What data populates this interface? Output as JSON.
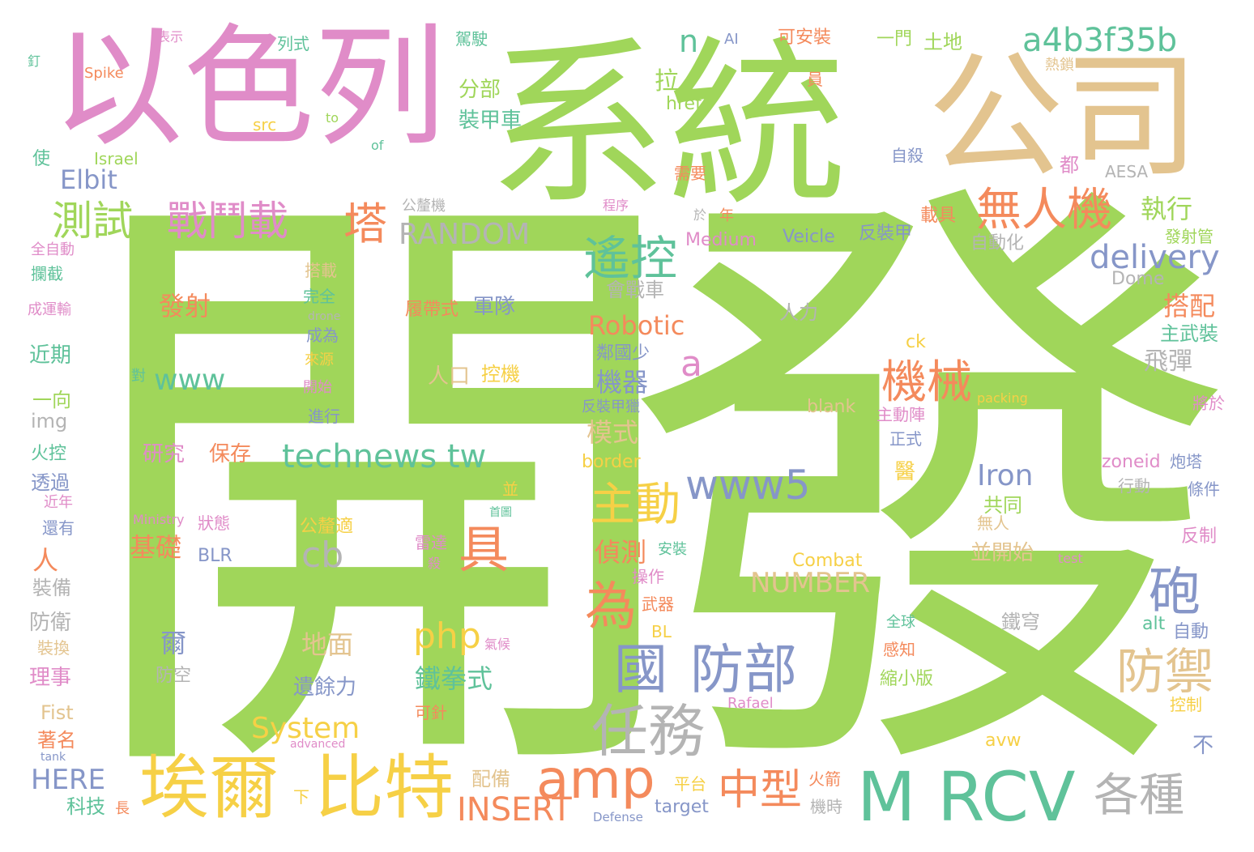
{
  "colors": {
    "green": "#a0d65a",
    "pink": "#e08cc8",
    "tan": "#e3c48f",
    "teal": "#5fc29a",
    "orange": "#f48a5c",
    "yellow": "#f6d046",
    "blue": "#8696c8",
    "gray": "#b4b4b4",
    "lime": "#b5dc6c"
  },
  "words": [
    {
      "text": "開",
      "color": "green"
    },
    {
      "text": "發",
      "color": "green"
    },
    {
      "text": "系統",
      "color": "green"
    },
    {
      "text": "以色列",
      "color": "pink"
    },
    {
      "text": "公司",
      "color": "tan"
    },
    {
      "text": "M RCV",
      "color": "teal"
    },
    {
      "text": "埃爾",
      "color": "yellow"
    },
    {
      "text": "比特",
      "color": "yellow"
    },
    {
      "text": "任務",
      "color": "gray"
    },
    {
      "text": "amp",
      "color": "orange"
    },
    {
      "text": "無人機",
      "color": "orange"
    },
    {
      "text": "a4b3f35b",
      "color": "teal"
    },
    {
      "text": "測試",
      "color": "green"
    },
    {
      "text": "戰鬥載",
      "color": "pink"
    },
    {
      "text": "塔",
      "color": "orange"
    },
    {
      "text": "遙控",
      "color": "teal"
    },
    {
      "text": "國",
      "color": "blue"
    },
    {
      "text": "防部",
      "color": "blue"
    },
    {
      "text": "機械",
      "color": "orange"
    },
    {
      "text": "砲",
      "color": "blue"
    },
    {
      "text": "防禦",
      "color": "tan"
    },
    {
      "text": "為",
      "color": "orange"
    },
    {
      "text": "具",
      "color": "orange"
    },
    {
      "text": "主動",
      "color": "yellow"
    },
    {
      "text": "中型",
      "color": "orange"
    },
    {
      "text": "各種",
      "color": "gray"
    },
    {
      "text": "www5",
      "color": "blue"
    },
    {
      "text": "technews tw",
      "color": "teal"
    },
    {
      "text": "delivery",
      "color": "blue"
    },
    {
      "text": "RANDOM",
      "color": "gray"
    },
    {
      "text": "INSERT",
      "color": "orange"
    },
    {
      "text": "a",
      "color": "pink"
    },
    {
      "text": "www",
      "color": "teal"
    },
    {
      "text": "cb",
      "color": "gray"
    },
    {
      "text": "php",
      "color": "yellow"
    },
    {
      "text": "System",
      "color": "yellow"
    },
    {
      "text": "NUMBER",
      "color": "tan"
    },
    {
      "text": "Robotic",
      "color": "orange"
    },
    {
      "text": "Iron",
      "color": "blue"
    },
    {
      "text": "n",
      "color": "teal"
    },
    {
      "text": "Elbit",
      "color": "blue"
    },
    {
      "text": "執行",
      "color": "green"
    },
    {
      "text": "搭配",
      "color": "orange"
    },
    {
      "text": "拉",
      "color": "green"
    },
    {
      "text": "分部",
      "color": "green"
    },
    {
      "text": "裝甲車",
      "color": "teal"
    },
    {
      "text": "發射",
      "color": "orange"
    },
    {
      "text": "機器",
      "color": "blue"
    },
    {
      "text": "模式",
      "color": "tan"
    },
    {
      "text": "偵測",
      "color": "orange"
    },
    {
      "text": "基礎",
      "color": "orange"
    },
    {
      "text": "地面",
      "color": "tan"
    },
    {
      "text": "鐵拳式",
      "color": "teal"
    },
    {
      "text": "遺餘力",
      "color": "blue"
    },
    {
      "text": "飛彈",
      "color": "gray"
    },
    {
      "text": "主武裝",
      "color": "teal"
    },
    {
      "text": "人",
      "color": "orange"
    },
    {
      "text": "爾",
      "color": "blue"
    },
    {
      "text": "研究",
      "color": "pink"
    },
    {
      "text": "保存",
      "color": "orange"
    },
    {
      "text": "履帶式",
      "color": "orange"
    },
    {
      "text": "軍隊",
      "color": "blue"
    },
    {
      "text": "人口",
      "color": "tan"
    },
    {
      "text": "控機",
      "color": "yellow"
    },
    {
      "text": "鄰國少",
      "color": "blue"
    },
    {
      "text": "共同",
      "color": "green"
    },
    {
      "text": "並開始",
      "color": "tan"
    },
    {
      "text": "Combat",
      "color": "yellow"
    },
    {
      "text": "Medium",
      "color": "pink"
    },
    {
      "text": "Veicle",
      "color": "blue"
    },
    {
      "text": "反裝甲",
      "color": "blue"
    },
    {
      "text": "載具",
      "color": "orange"
    },
    {
      "text": "自動化",
      "color": "gray"
    },
    {
      "text": "公釐機",
      "color": "gray"
    },
    {
      "text": "會戰車",
      "color": "gray"
    },
    {
      "text": "人力",
      "color": "gray"
    },
    {
      "text": "border",
      "color": "yellow"
    },
    {
      "text": "blank",
      "color": "tan"
    },
    {
      "text": "zoneid",
      "color": "pink"
    },
    {
      "text": "炮塔",
      "color": "blue"
    },
    {
      "text": "alt",
      "color": "teal"
    },
    {
      "text": "自動",
      "color": "blue"
    },
    {
      "text": "鐵穹",
      "color": "gray"
    },
    {
      "text": "HERE",
      "color": "blue"
    },
    {
      "text": "科技",
      "color": "teal"
    },
    {
      "text": "Fist",
      "color": "tan"
    },
    {
      "text": "著名",
      "color": "orange"
    },
    {
      "text": "理事",
      "color": "pink"
    },
    {
      "text": "防衛",
      "color": "gray"
    },
    {
      "text": "裝備",
      "color": "gray"
    },
    {
      "text": "近期",
      "color": "teal"
    },
    {
      "text": "一向",
      "color": "green"
    },
    {
      "text": "img",
      "color": "gray"
    },
    {
      "text": "火控",
      "color": "teal"
    },
    {
      "text": "透過",
      "color": "blue"
    },
    {
      "text": "近年",
      "color": "pink"
    },
    {
      "text": "還有",
      "color": "blue"
    },
    {
      "text": "裝換",
      "color": "tan"
    },
    {
      "text": "防空",
      "color": "gray"
    },
    {
      "text": "BLR",
      "color": "blue"
    },
    {
      "text": "狀態",
      "color": "pink"
    },
    {
      "text": "Ministry",
      "color": "pink"
    },
    {
      "text": "公釐適",
      "color": "yellow"
    },
    {
      "text": "雷達",
      "color": "pink"
    },
    {
      "text": "殺",
      "color": "pink"
    },
    {
      "text": "安裝",
      "color": "teal"
    },
    {
      "text": "操作",
      "color": "pink"
    },
    {
      "text": "武器",
      "color": "orange"
    },
    {
      "text": "BL",
      "color": "yellow"
    },
    {
      "text": "配備",
      "color": "tan"
    },
    {
      "text": "平台",
      "color": "yellow"
    },
    {
      "text": "target",
      "color": "blue"
    },
    {
      "text": "Defense",
      "color": "blue"
    },
    {
      "text": "火箭",
      "color": "orange"
    },
    {
      "text": "機時",
      "color": "gray"
    },
    {
      "text": "可針",
      "color": "orange"
    },
    {
      "text": "advanced",
      "color": "pink"
    },
    {
      "text": "tank",
      "color": "blue"
    },
    {
      "text": "下",
      "color": "yellow"
    },
    {
      "text": "長",
      "color": "orange"
    },
    {
      "text": "avw",
      "color": "yellow"
    },
    {
      "text": "Rafael",
      "color": "pink"
    },
    {
      "text": "控制",
      "color": "yellow"
    },
    {
      "text": "不",
      "color": "blue"
    },
    {
      "text": "縮小版",
      "color": "green"
    },
    {
      "text": "感知",
      "color": "orange"
    },
    {
      "text": "全球",
      "color": "teal"
    },
    {
      "text": "醫",
      "color": "yellow"
    },
    {
      "text": "正式",
      "color": "blue"
    },
    {
      "text": "主動陣",
      "color": "pink"
    },
    {
      "text": "packing",
      "color": "yellow"
    },
    {
      "text": "將於",
      "color": "pink"
    },
    {
      "text": "行動",
      "color": "gray"
    },
    {
      "text": "條件",
      "color": "blue"
    },
    {
      "text": "反制",
      "color": "pink"
    },
    {
      "text": "test",
      "color": "pink"
    },
    {
      "text": "無人",
      "color": "tan"
    },
    {
      "text": "ck",
      "color": "yellow"
    },
    {
      "text": "Dome",
      "color": "gray"
    },
    {
      "text": "發射管",
      "color": "green"
    },
    {
      "text": "AESA",
      "color": "gray"
    },
    {
      "text": "於",
      "color": "gray"
    },
    {
      "text": "年",
      "color": "orange"
    },
    {
      "text": "都",
      "color": "pink"
    },
    {
      "text": "需要",
      "color": "orange"
    },
    {
      "text": "自殺",
      "color": "blue"
    },
    {
      "text": "熱鎖",
      "color": "tan"
    },
    {
      "text": "員",
      "color": "orange"
    },
    {
      "text": "一門",
      "color": "green"
    },
    {
      "text": "土地",
      "color": "green"
    },
    {
      "text": "可安裝",
      "color": "orange"
    },
    {
      "text": "AI",
      "color": "blue"
    },
    {
      "text": "href",
      "color": "green"
    },
    {
      "text": "程序",
      "color": "pink"
    },
    {
      "text": "駕駛",
      "color": "teal"
    },
    {
      "text": "列式",
      "color": "teal"
    },
    {
      "text": "表示",
      "color": "pink"
    },
    {
      "text": "Spike",
      "color": "orange"
    },
    {
      "text": "釘",
      "color": "teal"
    },
    {
      "text": "src",
      "color": "yellow"
    },
    {
      "text": "to",
      "color": "green"
    },
    {
      "text": "of",
      "color": "teal"
    },
    {
      "text": "Israel",
      "color": "green"
    },
    {
      "text": "使",
      "color": "teal"
    },
    {
      "text": "全自動",
      "color": "pink"
    },
    {
      "text": "攔截",
      "color": "teal"
    },
    {
      "text": "成運輸",
      "color": "pink"
    },
    {
      "text": "搭載",
      "color": "tan"
    },
    {
      "text": "完全",
      "color": "teal"
    },
    {
      "text": "drone",
      "color": "gray"
    },
    {
      "text": "成為",
      "color": "blue"
    },
    {
      "text": "來源",
      "color": "yellow"
    },
    {
      "text": "對",
      "color": "teal"
    },
    {
      "text": "開始",
      "color": "pink"
    },
    {
      "text": "進行",
      "color": "blue"
    },
    {
      "text": "反裝甲獵",
      "color": "blue"
    },
    {
      "text": "並",
      "color": "yellow"
    },
    {
      "text": "首圖",
      "color": "teal"
    },
    {
      "text": "氣候",
      "color": "pink"
    }
  ]
}
